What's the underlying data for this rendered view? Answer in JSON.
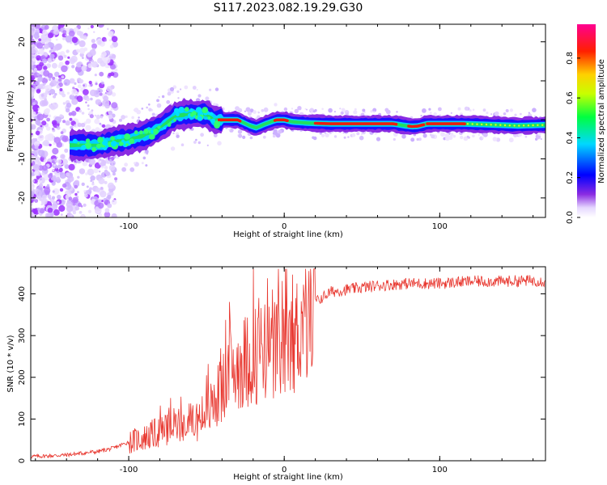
{
  "title": "S117.2023.082.19.29.G30",
  "chart_data": [
    {
      "type": "heatmap",
      "xlabel": "Height of straight line (km)",
      "ylabel": "Frequency (Hz)",
      "xlim": [
        -163,
        168
      ],
      "ylim": [
        -25,
        24.5
      ],
      "xticks": [
        "-100",
        "0",
        "100"
      ],
      "xtick_values": [
        -100,
        0,
        100
      ],
      "yticks": [
        "-20",
        "-10",
        "0",
        "10",
        "20"
      ],
      "ytick_values": [
        -20,
        -10,
        0,
        10,
        20
      ],
      "ridge": {
        "x": [
          -135,
          -120,
          -110,
          -100,
          -90,
          -80,
          -70,
          -60,
          -50,
          -45,
          -40,
          -30,
          -22,
          -18,
          -12,
          -5,
          0,
          5,
          15,
          30,
          50,
          70,
          78,
          82,
          86,
          92,
          100,
          115,
          130,
          150,
          168
        ],
        "freq": [
          -6.5,
          -6.5,
          -5.5,
          -5,
          -4,
          -2,
          1,
          1.5,
          1.5,
          0,
          0,
          0,
          -1.5,
          -2,
          -1,
          0,
          0,
          -0.5,
          -0.8,
          -1,
          -1,
          -1,
          -1.5,
          -1.7,
          -1.6,
          -1,
          -1,
          -1,
          -1.2,
          -1.5,
          -1.3
        ]
      },
      "colorbar": {
        "label": "Normalized spectral amplitude",
        "range": [
          0,
          0.97
        ],
        "ticks": [
          "0.0",
          "0.2",
          "0.4",
          "0.6",
          "0.8"
        ],
        "tick_values": [
          0,
          0.2,
          0.4,
          0.6,
          0.8
        ]
      }
    },
    {
      "type": "line",
      "xlabel": "Height of straight line (km)",
      "ylabel": "SNR (10 * v/v)",
      "xlim": [
        -163,
        168
      ],
      "ylim": [
        0,
        465
      ],
      "xticks": [
        "-100",
        "0",
        "100"
      ],
      "xtick_values": [
        -100,
        0,
        100
      ],
      "yticks": [
        "0",
        "100",
        "200",
        "300",
        "400"
      ],
      "ytick_values": [
        0,
        100,
        200,
        300,
        400
      ],
      "color": "#e8372f",
      "series": [
        {
          "x": [
            -163,
            -150,
            -140,
            -130,
            -120,
            -110,
            -100,
            -90,
            -80,
            -70,
            -60,
            -50,
            -40,
            -30,
            -20,
            -10,
            0,
            10,
            20,
            30,
            40,
            60,
            80,
            100,
            120,
            140,
            160,
            168
          ],
          "y": [
            10,
            12,
            14,
            18,
            22,
            30,
            45,
            55,
            70,
            85,
            90,
            110,
            170,
            230,
            250,
            270,
            250,
            320,
            380,
            405,
            410,
            420,
            425,
            425,
            430,
            430,
            432,
            430
          ]
        }
      ]
    }
  ]
}
